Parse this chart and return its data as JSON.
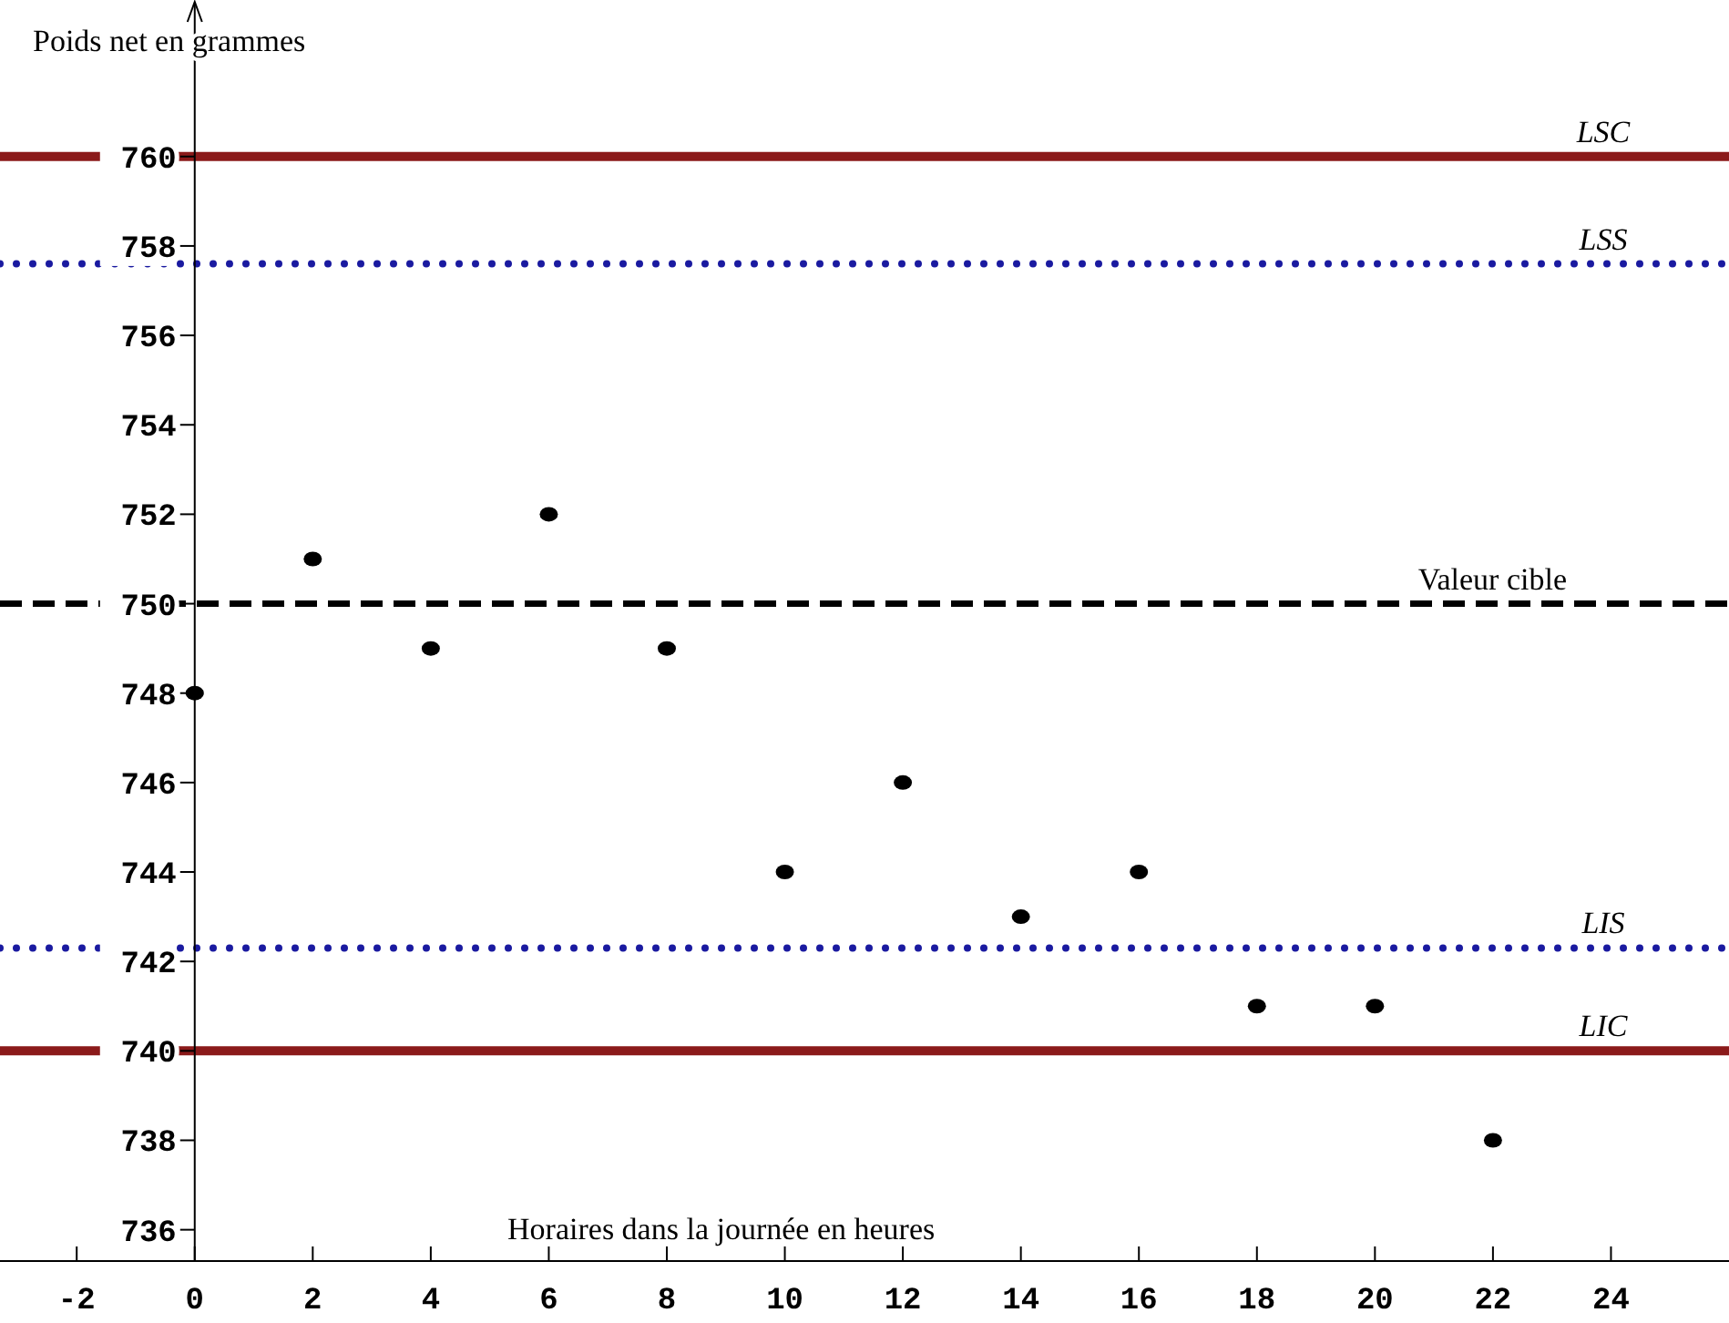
{
  "chart_data": {
    "type": "scatter",
    "xlabel": "Horaires dans la journée en heures",
    "ylabel": "Poids net en grammes",
    "x": [
      0,
      2,
      4,
      6,
      8,
      10,
      12,
      14,
      16,
      18,
      20,
      22
    ],
    "series": [
      {
        "color": "#000000",
        "values": [
          748,
          751,
          749,
          752,
          749,
          744,
          746,
          743,
          744,
          741,
          741,
          738
        ]
      }
    ],
    "xlim": [
      -3.3,
      26
    ],
    "ylim": [
      735.3,
      763.5
    ],
    "xticks": [
      -2,
      0,
      2,
      4,
      6,
      8,
      10,
      12,
      14,
      16,
      18,
      20,
      22,
      24
    ],
    "yticks": [
      736,
      738,
      740,
      742,
      744,
      746,
      748,
      750,
      752,
      754,
      756,
      758,
      760
    ],
    "marker": "circle",
    "grid": false,
    "ref_lines": [
      {
        "axis": "y",
        "value": 760,
        "label": "LSC",
        "color": "#8b1a1a",
        "line_style": "solid"
      },
      {
        "axis": "y",
        "value": 757.6,
        "label": "LSS",
        "color": "#1a1aa0",
        "line_style": "dotted"
      },
      {
        "axis": "y",
        "value": 750,
        "label": "Valeur cible",
        "color": "#000000",
        "line_style": "dashed"
      },
      {
        "axis": "y",
        "value": 742.3,
        "label": "LIS",
        "color": "#1a1aa0",
        "line_style": "dotted"
      },
      {
        "axis": "y",
        "value": 740,
        "label": "LIC",
        "color": "#8b1a1a",
        "line_style": "solid"
      }
    ]
  }
}
